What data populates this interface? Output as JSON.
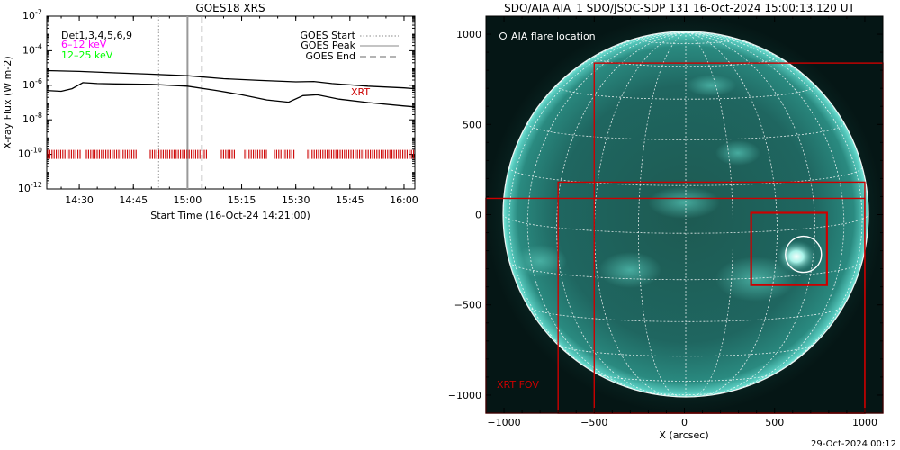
{
  "chart_data": [
    {
      "type": "line",
      "title": "GOES18 XRS",
      "xlabel": "Start Time (16-Oct-24 14:21:00)",
      "ylabel": "X-ray Flux (W m-2)",
      "y_scale": "log",
      "ylim_exponent": [
        -12,
        -2
      ],
      "xlim_minutes": [
        "14:21",
        "16:03"
      ],
      "x_ticks": [
        "14:30",
        "14:45",
        "15:00",
        "15:15",
        "15:30",
        "15:45",
        "16:00"
      ],
      "y_tick_exponents": [
        "-12",
        "-10",
        "-8",
        "-6",
        "-4",
        "-2"
      ],
      "y_tick_base": "10",
      "legend_left": {
        "channels": "Det1,3,4,5,6,9",
        "band1": "6–12 keV",
        "band1_color": "#ff00ff",
        "band2": "12–25 keV",
        "band2_color": "#00ff00"
      },
      "legend_right": {
        "start": "GOES Start",
        "peak": "GOES Peak",
        "end": "GOES End"
      },
      "event_times": {
        "start": "14:52",
        "peak": "15:00",
        "end": "15:04"
      },
      "xrt_label": "XRT",
      "xrt_color": "#cc0000",
      "series": [
        {
          "name": "",
          "time": [
            "14:21",
            "14:30",
            "14:40",
            "14:50",
            "15:00",
            "15:10",
            "15:20",
            "15:30",
            "15:35",
            "15:40",
            "15:50",
            "16:00",
            "16:03"
          ],
          "log_flux": [
            -5.15,
            -5.2,
            -5.28,
            -5.36,
            -5.45,
            -5.62,
            -5.72,
            -5.8,
            -5.78,
            -5.9,
            -6.05,
            -6.15,
            -6.2
          ]
        },
        {
          "name": "",
          "time": [
            "14:21",
            "14:25",
            "14:28",
            "14:31",
            "14:35",
            "14:40",
            "14:50",
            "15:00",
            "15:08",
            "15:15",
            "15:22",
            "15:28",
            "15:32",
            "15:36",
            "15:42",
            "15:50",
            "16:00",
            "16:03"
          ],
          "log_flux": [
            -6.3,
            -6.35,
            -6.2,
            -5.85,
            -5.9,
            -5.92,
            -5.95,
            -6.05,
            -6.3,
            -6.55,
            -6.85,
            -6.98,
            -6.6,
            -6.55,
            -6.8,
            -7.0,
            -7.2,
            -7.25
          ]
        }
      ]
    },
    {
      "type": "scatter",
      "title": "SDO/AIA AIA_1 SDO/JSOC-SDP 131 16-Oct-2024 15:00:13.120 UT",
      "xlabel": "X (arcsec)",
      "ylabel": "",
      "xlim": [
        -1100,
        1100
      ],
      "ylim": [
        -1100,
        1100
      ],
      "x_ticks": [
        -1000,
        -500,
        0,
        500,
        1000
      ],
      "y_ticks": [
        -1000,
        -500,
        0,
        500,
        1000
      ],
      "legend_text": "AIA flare location",
      "xrt_fov_label": "XRT FOV",
      "box_color": "#cc0000",
      "flare_location": {
        "x": 660,
        "y": -220
      },
      "timestamp": "29-Oct-2024 00:12"
    }
  ]
}
